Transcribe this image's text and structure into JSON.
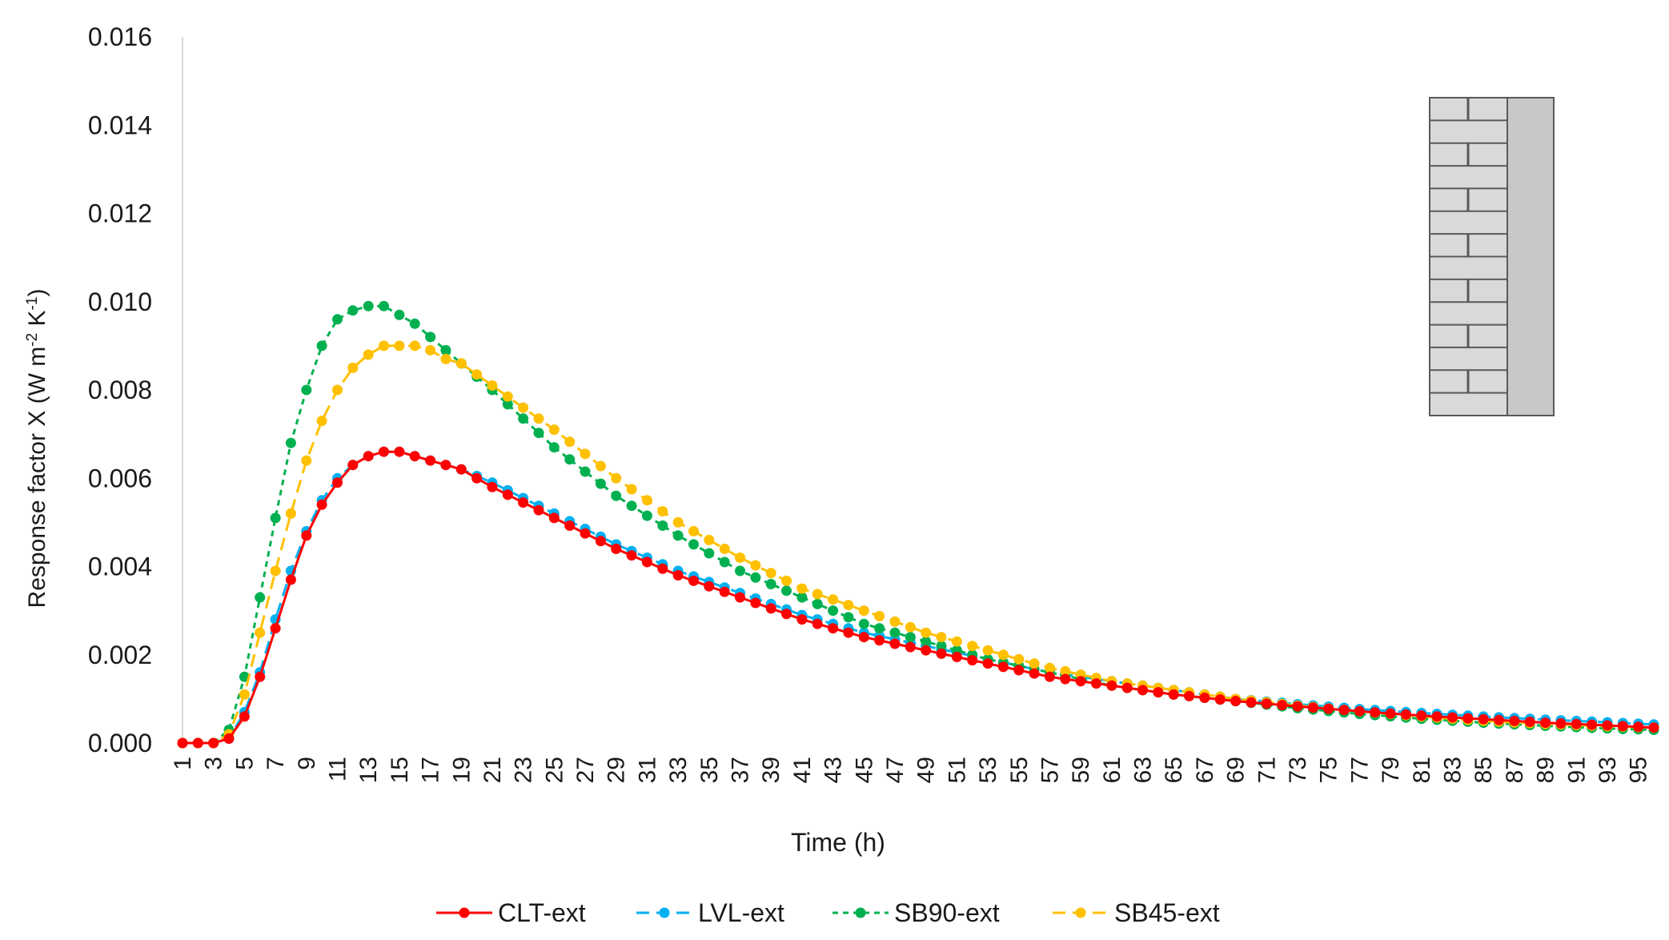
{
  "chart_data": {
    "type": "line",
    "title": "",
    "xlabel": "Time (h)",
    "ylabel_main": "Response factor X (W m",
    "ylabel_sup1": "-2",
    "ylabel_mid": " K",
    "ylabel_sup2": "-1",
    "ylabel_end": ")",
    "ylim": [
      0,
      0.016
    ],
    "yticks": [
      "0.000",
      "0.002",
      "0.004",
      "0.006",
      "0.008",
      "0.010",
      "0.012",
      "0.014",
      "0.016"
    ],
    "x_start": 1,
    "x_end": 96,
    "x_tick_labels": [
      "1",
      "3",
      "5",
      "7",
      "9",
      "11",
      "13",
      "15",
      "17",
      "19",
      "21",
      "23",
      "25",
      "27",
      "29",
      "31",
      "33",
      "35",
      "37",
      "39",
      "41",
      "43",
      "45",
      "47",
      "49",
      "51",
      "53",
      "55",
      "57",
      "59",
      "61",
      "63",
      "65",
      "67",
      "69",
      "71",
      "73",
      "75",
      "77",
      "79",
      "81",
      "83",
      "85",
      "87",
      "89",
      "91",
      "93",
      "95"
    ],
    "legend_position": "bottom",
    "inset_image": "brick-wall-section-icon",
    "series": [
      {
        "name": "CLT-ext",
        "color": "#ff0000",
        "dash": "solid",
        "peak_hour": 15,
        "peak_value": 0.0066,
        "tail_end_value": 0.00035,
        "key_points": [
          [
            1,
            0
          ],
          [
            2,
            0
          ],
          [
            3,
            0
          ],
          [
            4,
            0.0001
          ],
          [
            5,
            0.0006
          ],
          [
            6,
            0.0015
          ],
          [
            7,
            0.0026
          ],
          [
            8,
            0.0037
          ],
          [
            9,
            0.0047
          ],
          [
            10,
            0.0054
          ],
          [
            11,
            0.0059
          ],
          [
            12,
            0.0063
          ],
          [
            13,
            0.0065
          ],
          [
            14,
            0.0066
          ],
          [
            15,
            0.0066
          ],
          [
            16,
            0.0065
          ],
          [
            17,
            0.0064
          ],
          [
            18,
            0.0063
          ],
          [
            19,
            0.0062
          ],
          [
            21,
            0.0058
          ],
          [
            25,
            0.0051
          ],
          [
            29,
            0.0044
          ],
          [
            33,
            0.0038
          ],
          [
            37,
            0.0033
          ],
          [
            41,
            0.0028
          ],
          [
            45,
            0.0024
          ],
          [
            49,
            0.0021
          ],
          [
            53,
            0.0018
          ],
          [
            57,
            0.0015
          ],
          [
            61,
            0.0013
          ],
          [
            65,
            0.0011
          ],
          [
            69,
            0.00095
          ],
          [
            73,
            0.00083
          ],
          [
            77,
            0.00072
          ],
          [
            81,
            0.00062
          ],
          [
            85,
            0.00054
          ],
          [
            89,
            0.00046
          ],
          [
            93,
            0.0004
          ],
          [
            96,
            0.00035
          ]
        ]
      },
      {
        "name": "LVL-ext",
        "color": "#00b0f0",
        "dash": "long-dash",
        "peak_hour": 15,
        "peak_value": 0.0066,
        "tail_end_value": 0.00042,
        "key_points": [
          [
            1,
            0
          ],
          [
            2,
            0
          ],
          [
            3,
            0
          ],
          [
            4,
            0.0001
          ],
          [
            5,
            0.0007
          ],
          [
            6,
            0.0016
          ],
          [
            7,
            0.0028
          ],
          [
            8,
            0.0039
          ],
          [
            9,
            0.0048
          ],
          [
            10,
            0.0055
          ],
          [
            11,
            0.006
          ],
          [
            12,
            0.0063
          ],
          [
            13,
            0.0065
          ],
          [
            14,
            0.0066
          ],
          [
            15,
            0.0066
          ],
          [
            16,
            0.0065
          ],
          [
            17,
            0.0064
          ],
          [
            18,
            0.0063
          ],
          [
            19,
            0.0062
          ],
          [
            21,
            0.0059
          ],
          [
            25,
            0.0052
          ],
          [
            29,
            0.0045
          ],
          [
            33,
            0.0039
          ],
          [
            37,
            0.0034
          ],
          [
            41,
            0.0029
          ],
          [
            45,
            0.0025
          ],
          [
            49,
            0.0022
          ],
          [
            53,
            0.0019
          ],
          [
            57,
            0.0016
          ],
          [
            61,
            0.0014
          ],
          [
            65,
            0.0012
          ],
          [
            69,
            0.001
          ],
          [
            73,
            0.00088
          ],
          [
            77,
            0.00077
          ],
          [
            81,
            0.00068
          ],
          [
            85,
            0.0006
          ],
          [
            89,
            0.00053
          ],
          [
            93,
            0.00047
          ],
          [
            96,
            0.00042
          ]
        ]
      },
      {
        "name": "SB90-ext",
        "color": "#00b050",
        "dash": "short-dash",
        "peak_hour": 13,
        "peak_value": 0.0099,
        "tail_end_value": 0.0003,
        "key_points": [
          [
            1,
            0
          ],
          [
            2,
            0
          ],
          [
            3,
            0
          ],
          [
            4,
            0.0003
          ],
          [
            5,
            0.0015
          ],
          [
            6,
            0.0033
          ],
          [
            7,
            0.0051
          ],
          [
            8,
            0.0068
          ],
          [
            9,
            0.008
          ],
          [
            10,
            0.009
          ],
          [
            11,
            0.0096
          ],
          [
            12,
            0.0098
          ],
          [
            13,
            0.0099
          ],
          [
            14,
            0.0099
          ],
          [
            15,
            0.0097
          ],
          [
            16,
            0.0095
          ],
          [
            17,
            0.0092
          ],
          [
            18,
            0.0089
          ],
          [
            19,
            0.0086
          ],
          [
            21,
            0.008
          ],
          [
            25,
            0.0067
          ],
          [
            29,
            0.0056
          ],
          [
            33,
            0.0047
          ],
          [
            37,
            0.0039
          ],
          [
            41,
            0.0033
          ],
          [
            45,
            0.0027
          ],
          [
            49,
            0.0023
          ],
          [
            53,
            0.0019
          ],
          [
            57,
            0.0016
          ],
          [
            61,
            0.0013
          ],
          [
            65,
            0.0011
          ],
          [
            69,
            0.00095
          ],
          [
            73,
            0.00079
          ],
          [
            77,
            0.00066
          ],
          [
            81,
            0.00055
          ],
          [
            85,
            0.00046
          ],
          [
            89,
            0.00039
          ],
          [
            93,
            0.00033
          ],
          [
            96,
            0.0003
          ]
        ]
      },
      {
        "name": "SB45-ext",
        "color": "#ffc000",
        "dash": "long-dash",
        "peak_hour": 15,
        "peak_value": 0.009,
        "tail_end_value": 0.00035,
        "key_points": [
          [
            1,
            0
          ],
          [
            2,
            0
          ],
          [
            3,
            0
          ],
          [
            4,
            0.0002
          ],
          [
            5,
            0.0011
          ],
          [
            6,
            0.0025
          ],
          [
            7,
            0.0039
          ],
          [
            8,
            0.0052
          ],
          [
            9,
            0.0064
          ],
          [
            10,
            0.0073
          ],
          [
            11,
            0.008
          ],
          [
            12,
            0.0085
          ],
          [
            13,
            0.0088
          ],
          [
            14,
            0.009
          ],
          [
            15,
            0.009
          ],
          [
            16,
            0.009
          ],
          [
            17,
            0.0089
          ],
          [
            18,
            0.0087
          ],
          [
            19,
            0.0086
          ],
          [
            21,
            0.0081
          ],
          [
            25,
            0.0071
          ],
          [
            29,
            0.006
          ],
          [
            33,
            0.005
          ],
          [
            37,
            0.0042
          ],
          [
            41,
            0.0035
          ],
          [
            45,
            0.003
          ],
          [
            49,
            0.0025
          ],
          [
            53,
            0.0021
          ],
          [
            57,
            0.0017
          ],
          [
            61,
            0.0014
          ],
          [
            65,
            0.0012
          ],
          [
            69,
            0.001
          ],
          [
            73,
            0.00085
          ],
          [
            77,
            0.00072
          ],
          [
            81,
            0.0006
          ],
          [
            85,
            0.0005
          ],
          [
            89,
            0.00043
          ],
          [
            93,
            0.00038
          ],
          [
            96,
            0.00035
          ]
        ]
      }
    ]
  }
}
